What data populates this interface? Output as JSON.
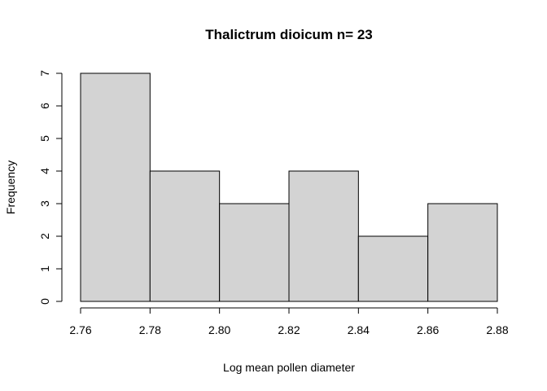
{
  "chart_data": {
    "type": "bar",
    "subtype": "histogram",
    "title": "Thalictrum dioicum n= 23",
    "xlabel": "Log mean pollen diameter",
    "ylabel": "Frequency",
    "bins": [
      {
        "start": 2.76,
        "end": 2.78,
        "count": 7
      },
      {
        "start": 2.78,
        "end": 2.8,
        "count": 4
      },
      {
        "start": 2.8,
        "end": 2.82,
        "count": 3
      },
      {
        "start": 2.82,
        "end": 2.84,
        "count": 4
      },
      {
        "start": 2.84,
        "end": 2.86,
        "count": 2
      },
      {
        "start": 2.86,
        "end": 2.88,
        "count": 3
      }
    ],
    "xlim": [
      2.76,
      2.88
    ],
    "ylim": [
      0,
      7
    ],
    "x_ticks": [
      "2.76",
      "2.78",
      "2.80",
      "2.82",
      "2.84",
      "2.86",
      "2.88"
    ],
    "y_ticks": [
      "0",
      "1",
      "2",
      "3",
      "4",
      "5",
      "6",
      "7"
    ],
    "bar_color": "#d3d3d3",
    "grid": false,
    "legend": "none"
  }
}
